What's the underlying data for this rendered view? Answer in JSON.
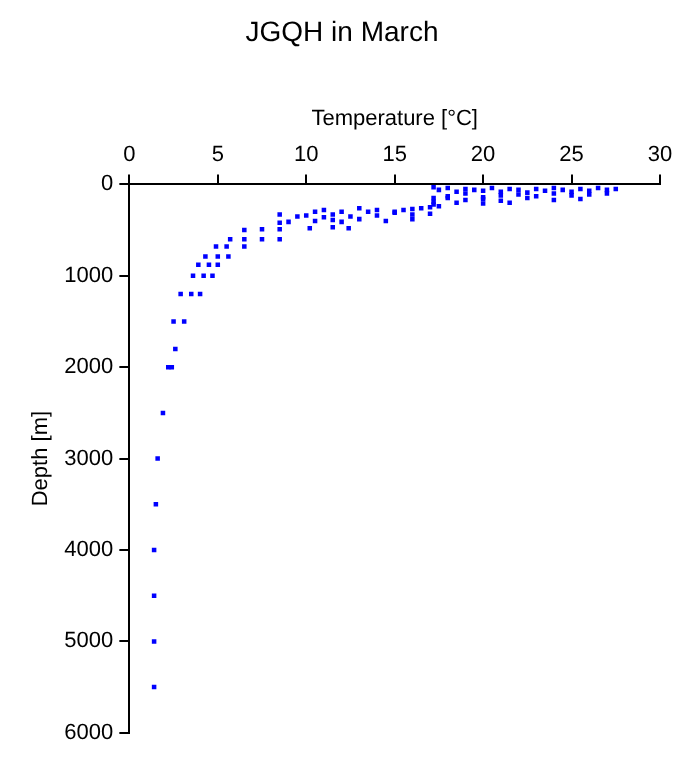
{
  "chart_data": {
    "type": "scatter",
    "title": "JGQH in March",
    "xlabel": "Temperature [°C]",
    "ylabel": "Depth [m]",
    "xlim": [
      0,
      30
    ],
    "xticks": [
      0,
      5,
      10,
      15,
      20,
      25,
      30
    ],
    "ylim": [
      6000,
      0
    ],
    "yticks": [
      0,
      1000,
      2000,
      3000,
      4000,
      5000,
      6000
    ],
    "grid": false,
    "legend": false,
    "marker": "square",
    "series": [
      {
        "color": "#0000ff",
        "x": [
          27.5,
          27,
          26.5,
          26,
          25.5,
          25,
          24.5,
          24,
          23.5,
          23,
          22.5,
          22,
          21.5,
          21,
          20.5,
          20,
          19.5,
          19,
          18.5,
          18,
          17.5,
          17.2,
          27,
          26,
          25,
          24,
          23,
          22,
          21,
          20,
          19,
          18,
          17.2,
          25.5,
          24,
          22.5,
          21,
          20,
          19,
          18,
          17.2,
          21.5,
          20,
          18.5,
          17.2,
          17.5,
          17,
          16.5,
          16,
          15.5,
          15,
          14,
          13,
          12,
          11,
          10.5,
          17,
          16,
          15,
          14,
          13.5,
          12.5,
          11.5,
          11,
          10,
          9.5,
          8.5,
          16,
          14.5,
          13,
          12,
          11.5,
          10.5,
          9,
          8.5,
          12.4,
          11.5,
          10.2,
          8.5,
          7.5,
          6.5,
          8.5,
          7.5,
          6.5,
          5.7,
          6.5,
          5.5,
          4.9,
          5.6,
          5,
          4.3,
          5,
          4.5,
          3.9,
          4.7,
          4.2,
          3.6,
          4,
          3.5,
          2.9,
          3.1,
          2.5,
          2.6,
          2.4,
          2.2,
          1.9,
          1.6,
          1.5,
          1.4,
          1.4,
          1.4,
          1.4
        ],
        "values": [
          50,
          60,
          40,
          70,
          50,
          80,
          60,
          40,
          70,
          50,
          90,
          60,
          50,
          80,
          40,
          70,
          60,
          50,
          80,
          40,
          60,
          30,
          100,
          110,
          120,
          100,
          130,
          110,
          120,
          140,
          100,
          130,
          150,
          160,
          170,
          150,
          180,
          160,
          170,
          150,
          190,
          200,
          210,
          200,
          220,
          240,
          250,
          260,
          270,
          280,
          300,
          280,
          260,
          300,
          280,
          300,
          320,
          330,
          310,
          340,
          300,
          350,
          330,
          360,
          340,
          350,
          330,
          380,
          400,
          380,
          410,
          390,
          400,
          410,
          420,
          480,
          470,
          480,
          490,
          490,
          500,
          600,
          600,
          600,
          600,
          680,
          680,
          680,
          790,
          790,
          790,
          880,
          880,
          880,
          1000,
          1000,
          1000,
          1200,
          1200,
          1200,
          1500,
          1500,
          1800,
          2000,
          2000,
          2500,
          3000,
          3500,
          4000,
          4500,
          5000,
          5500
        ]
      }
    ]
  }
}
